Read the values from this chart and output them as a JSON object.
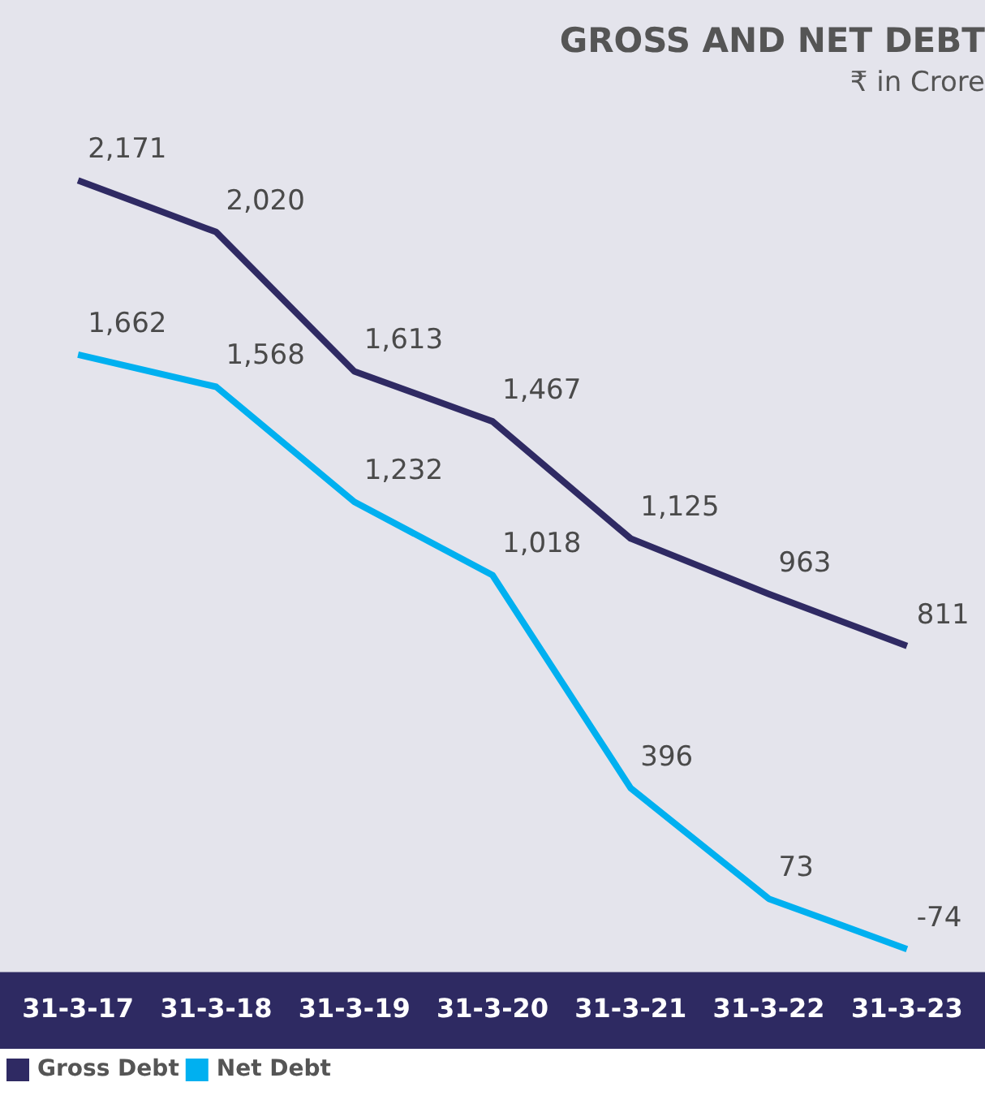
{
  "chart_data": {
    "type": "line",
    "title": "GROSS AND NET DEBT",
    "subtitle": "₹ in Crore",
    "categories": [
      "31-3-17",
      "31-3-18",
      "31-3-19",
      "31-3-20",
      "31-3-21",
      "31-3-22",
      "31-3-23"
    ],
    "series": [
      {
        "name": "Gross Debt",
        "color": "#2f2a63",
        "values": [
          2171,
          2020,
          1613,
          1467,
          1125,
          963,
          811
        ],
        "value_labels": [
          "2,171",
          "2,020",
          "1,613",
          "1,467",
          "1,125",
          "963",
          "811"
        ]
      },
      {
        "name": "Net Debt",
        "color": "#00b0f0",
        "values": [
          1662,
          1568,
          1232,
          1018,
          396,
          73,
          -74
        ],
        "value_labels": [
          "1,662",
          "1,568",
          "1,232",
          "1,018",
          "396",
          "73",
          "-74"
        ]
      }
    ],
    "legend": "bottom left",
    "tick_labels": "x",
    "grid": false,
    "marker": "none"
  }
}
